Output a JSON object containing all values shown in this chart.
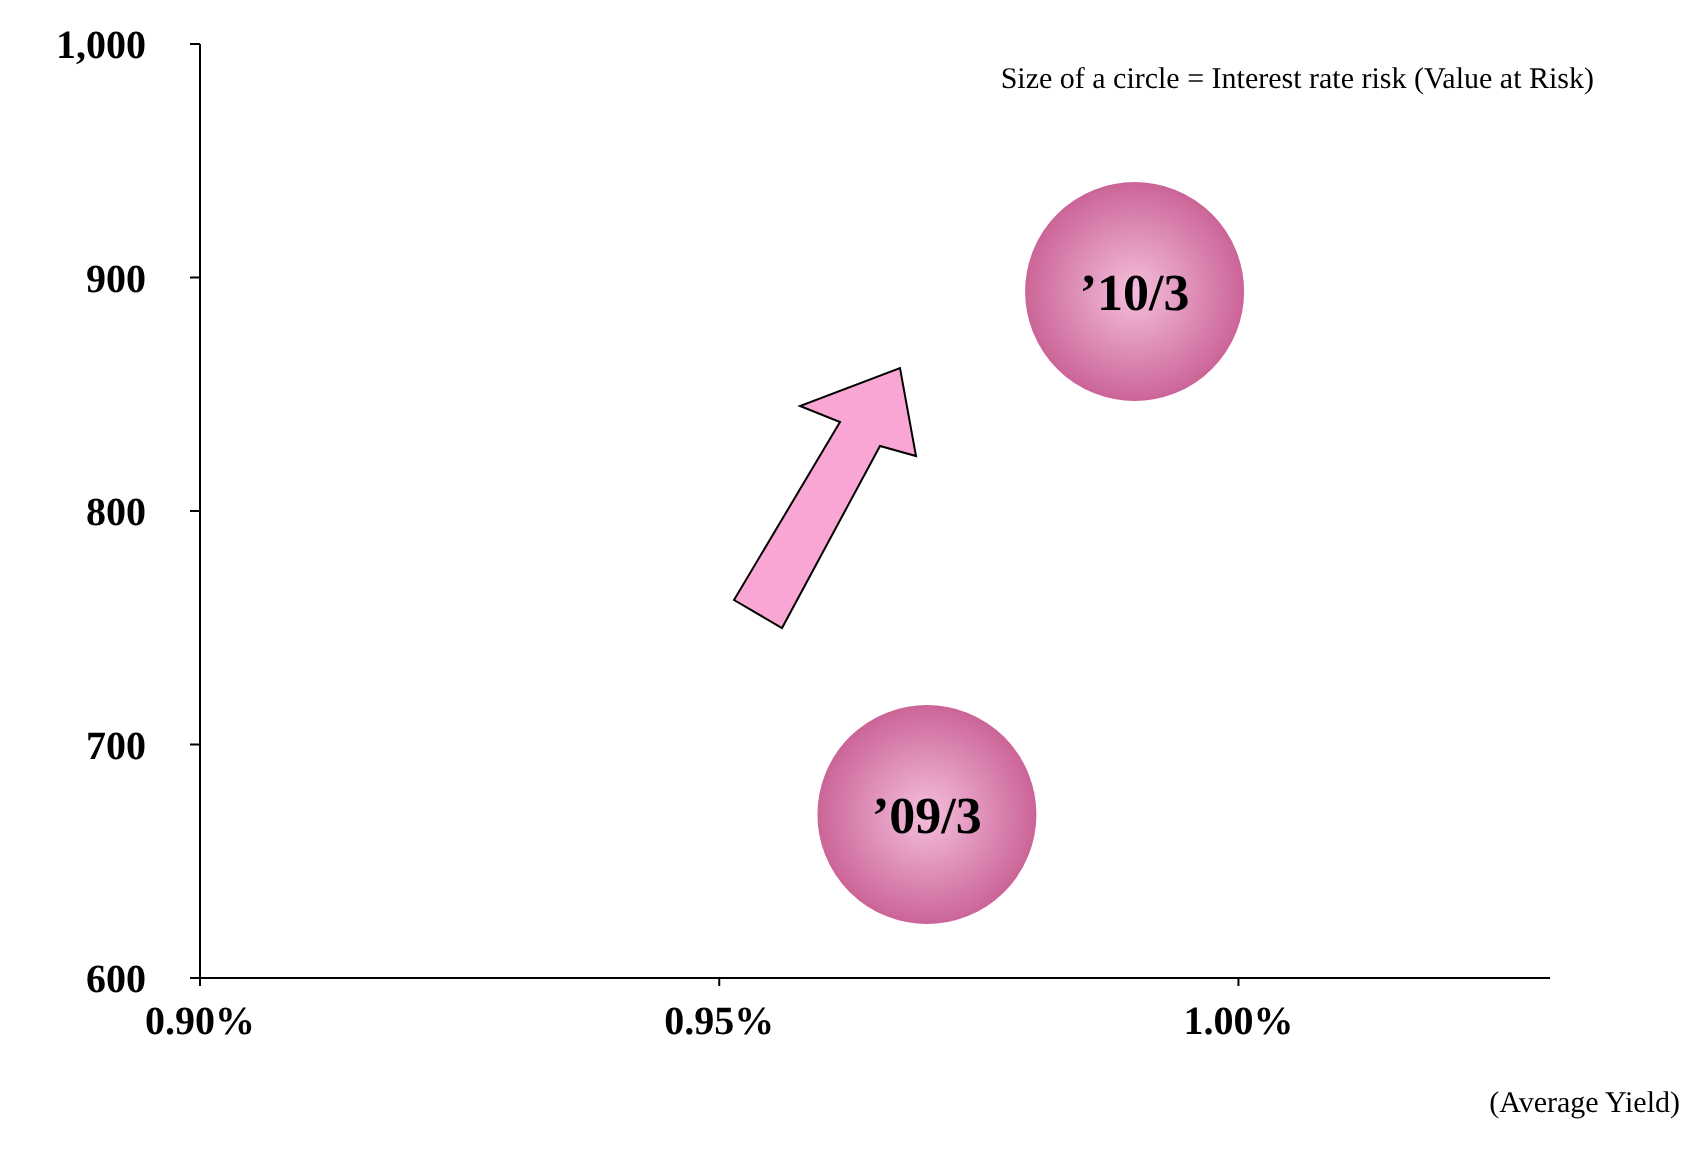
{
  "chart_data": {
    "type": "bubble",
    "xlabel": "(Average Yield)",
    "x": [
      0.97,
      0.99
    ],
    "series": [
      {
        "color": "#cc6699",
        "values": [
          670,
          894
        ],
        "sizes": [
          1,
          1
        ]
      }
    ],
    "xlim": [
      0.9,
      1.03
    ],
    "ylim": [
      600,
      1000
    ],
    "xticks": [
      {
        "value": 0.9,
        "label": "0.90%"
      },
      {
        "value": 0.95,
        "label": "0.95%"
      },
      {
        "value": 1.0,
        "label": "1.00%"
      }
    ],
    "yticks": [
      600,
      700,
      800,
      900,
      {
        "value": 1000,
        "label": "1,000"
      }
    ],
    "annotations": [
      "Size of a circle = Interest rate risk (Value at Risk)",
      {
        "text": "’09/3",
        "x": 0.97,
        "y": 670
      },
      {
        "text": "’10/3",
        "x": 0.99,
        "y": 894
      }
    ],
    "grid": false,
    "marker": "circle"
  }
}
